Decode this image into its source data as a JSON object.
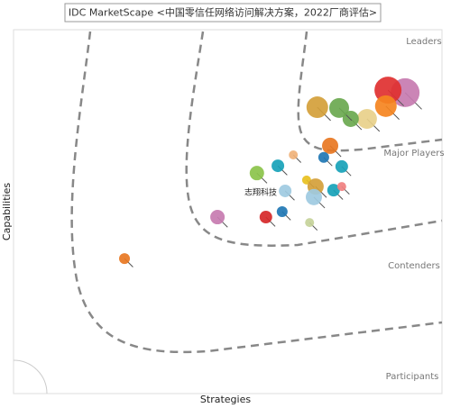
{
  "chart_data": {
    "type": "bubble",
    "title": "IDC MarketScape <中国零信任网络访问解决方案，2022厂商评估>",
    "x_label": "Strategies",
    "y_label": "Capabilities",
    "region_labels": [
      "Leaders",
      "Major Players",
      "Contenders",
      "Participants"
    ],
    "annotation": "志翔科技",
    "xlim": [
      0,
      100
    ],
    "ylim": [
      0,
      100
    ],
    "points": [
      {
        "x": 91.4,
        "y": 82.7,
        "size": 16,
        "color": "#c77bb0"
      },
      {
        "x": 87.4,
        "y": 83.4,
        "size": 15,
        "color": "#e03030"
      },
      {
        "x": 86.9,
        "y": 79.0,
        "size": 12,
        "color": "#f5841f"
      },
      {
        "x": 82.5,
        "y": 75.5,
        "size": 11,
        "color": "#e8d08a"
      },
      {
        "x": 78.7,
        "y": 75.5,
        "size": 9,
        "color": "#6aa84f"
      },
      {
        "x": 76.0,
        "y": 78.5,
        "size": 11,
        "color": "#6aa84f"
      },
      {
        "x": 70.9,
        "y": 78.7,
        "size": 12,
        "color": "#d4a03a"
      },
      {
        "x": 73.9,
        "y": 68.1,
        "size": 9,
        "color": "#e87722"
      },
      {
        "x": 72.4,
        "y": 64.9,
        "size": 6,
        "color": "#1f77b4"
      },
      {
        "x": 76.6,
        "y": 62.4,
        "size": 7,
        "color": "#17a2b8"
      },
      {
        "x": 65.3,
        "y": 65.6,
        "size": 5,
        "color": "#f0b27a"
      },
      {
        "x": 61.7,
        "y": 62.6,
        "size": 7,
        "color": "#17a2b8"
      },
      {
        "x": 56.8,
        "y": 60.6,
        "size": 8,
        "color": "#8bc34a"
      },
      {
        "x": 68.4,
        "y": 58.7,
        "size": 5,
        "color": "#e8c020"
      },
      {
        "x": 70.5,
        "y": 56.9,
        "size": 9,
        "color": "#d4a03a"
      },
      {
        "x": 70.1,
        "y": 54.0,
        "size": 9,
        "color": "#9ecae1"
      },
      {
        "x": 74.7,
        "y": 55.9,
        "size": 7,
        "color": "#17a2b8"
      },
      {
        "x": 76.6,
        "y": 56.9,
        "size": 5,
        "color": "#f08080"
      },
      {
        "x": 63.4,
        "y": 55.7,
        "size": 7,
        "color": "#9ecae1"
      },
      {
        "x": 62.7,
        "y": 50.0,
        "size": 6,
        "color": "#1f77b4"
      },
      {
        "x": 58.9,
        "y": 48.5,
        "size": 7,
        "color": "#d62728"
      },
      {
        "x": 47.6,
        "y": 48.5,
        "size": 8,
        "color": "#c77bb0"
      },
      {
        "x": 69.1,
        "y": 47.0,
        "size": 5,
        "color": "#c5d39a"
      },
      {
        "x": 25.9,
        "y": 37.1,
        "size": 6,
        "color": "#e87722"
      }
    ]
  }
}
